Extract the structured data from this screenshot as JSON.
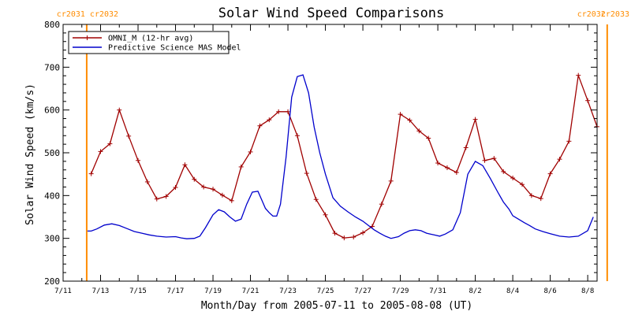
{
  "chart_data": {
    "type": "line",
    "title": "Solar Wind Speed Comparisons",
    "xlabel": "Month/Day from 2005-07-11 to 2005-08-08 (UT)",
    "ylabel": "Solar Wind Speed (km/s)",
    "ylim": [
      200,
      800
    ],
    "yticks": [
      200,
      300,
      400,
      500,
      600,
      700,
      800
    ],
    "xlim": [
      0,
      28.5
    ],
    "xticks": [
      {
        "x": 0,
        "label": "7/11"
      },
      {
        "x": 2,
        "label": "7/13"
      },
      {
        "x": 4,
        "label": "7/15"
      },
      {
        "x": 6,
        "label": "7/17"
      },
      {
        "x": 8,
        "label": "7/19"
      },
      {
        "x": 10,
        "label": "7/21"
      },
      {
        "x": 12,
        "label": "7/23"
      },
      {
        "x": 14,
        "label": "7/25"
      },
      {
        "x": 16,
        "label": "7/27"
      },
      {
        "x": 18,
        "label": "7/29"
      },
      {
        "x": 20,
        "label": "7/31"
      },
      {
        "x": 22,
        "label": "8/2"
      },
      {
        "x": 24,
        "label": "8/4"
      },
      {
        "x": 26,
        "label": "8/6"
      },
      {
        "x": 28,
        "label": "8/8"
      }
    ],
    "carrington_markers": [
      {
        "x": 1.26,
        "left_label": "cr2031",
        "right_label": "cr2032"
      },
      {
        "x": 29.04,
        "left_label": "cr2032",
        "right_label": "cr2033"
      }
    ],
    "series": [
      {
        "name": "OMNI_M (12-hr avg)",
        "color": "#a00000",
        "x": [
          1.5,
          2.0,
          2.5,
          3.0,
          3.5,
          4.0,
          4.5,
          5.0,
          5.5,
          6.0,
          6.5,
          7.0,
          7.5,
          8.0,
          8.5,
          9.0,
          9.5,
          10.0,
          10.5,
          11.0,
          11.5,
          12.0,
          12.5,
          13.0,
          13.5,
          14.0,
          14.5,
          15.0,
          15.5,
          16.0,
          16.5,
          17.0,
          17.5,
          18.0,
          18.5,
          19.0,
          19.5,
          20.0,
          20.5,
          21.0,
          21.5,
          22.0,
          22.5,
          23.0,
          23.5,
          24.0,
          24.5,
          25.0,
          25.5,
          26.0,
          26.5,
          27.0,
          27.5,
          28.0,
          28.5
        ],
        "y": [
          451,
          503,
          521,
          600,
          539,
          482,
          432,
          392,
          398,
          419,
          472,
          438,
          420,
          415,
          401,
          388,
          467,
          502,
          563,
          577,
          596,
          596,
          540,
          452,
          391,
          355,
          312,
          301,
          303,
          313,
          328,
          380,
          434,
          590,
          576,
          551,
          534,
          476,
          465,
          454,
          512,
          578,
          482,
          487,
          456,
          441,
          426,
          400,
          393,
          451,
          485,
          527,
          681,
          622,
          561
        ]
      },
      {
        "name": "Predictive Science MAS Model",
        "color": "#0000cc",
        "x": [
          1.3,
          1.5,
          1.8,
          2.2,
          2.6,
          3.0,
          3.4,
          3.8,
          4.2,
          4.6,
          5.0,
          5.5,
          6.0,
          6.3,
          6.6,
          7.0,
          7.3,
          7.6,
          8.0,
          8.3,
          8.6,
          8.9,
          9.2,
          9.5,
          9.8,
          10.1,
          10.4,
          10.6,
          10.8,
          11.0,
          11.2,
          11.4,
          11.6,
          11.9,
          12.2,
          12.5,
          12.8,
          13.1,
          13.4,
          13.7,
          14.0,
          14.4,
          14.8,
          15.2,
          15.6,
          16.0,
          16.3,
          16.6,
          16.9,
          17.2,
          17.5,
          17.9,
          18.2,
          18.5,
          18.8,
          19.1,
          19.4,
          19.6,
          19.8,
          20.1,
          20.4,
          20.8,
          21.2,
          21.6,
          22.0,
          22.4,
          22.8,
          23.2,
          23.5,
          23.8,
          24.0,
          24.3,
          24.6,
          24.9,
          25.2,
          25.6,
          26.0,
          26.5,
          27.0,
          27.5,
          28.0,
          28.3
        ],
        "y": [
          317,
          317,
          322,
          331,
          334,
          330,
          323,
          316,
          312,
          308,
          305,
          303,
          304,
          301,
          299,
          300,
          305,
          325,
          355,
          367,
          362,
          350,
          340,
          345,
          380,
          408,
          410,
          390,
          370,
          360,
          352,
          352,
          380,
          490,
          630,
          678,
          682,
          640,
          560,
          500,
          450,
          395,
          375,
          362,
          350,
          340,
          330,
          320,
          312,
          305,
          300,
          304,
          312,
          318,
          320,
          318,
          312,
          310,
          308,
          305,
          310,
          320,
          360,
          450,
          480,
          470,
          440,
          408,
          385,
          368,
          353,
          345,
          337,
          330,
          322,
          316,
          311,
          305,
          303,
          305,
          318,
          350
        ]
      }
    ],
    "legend_position": "top-left",
    "grid": false
  }
}
